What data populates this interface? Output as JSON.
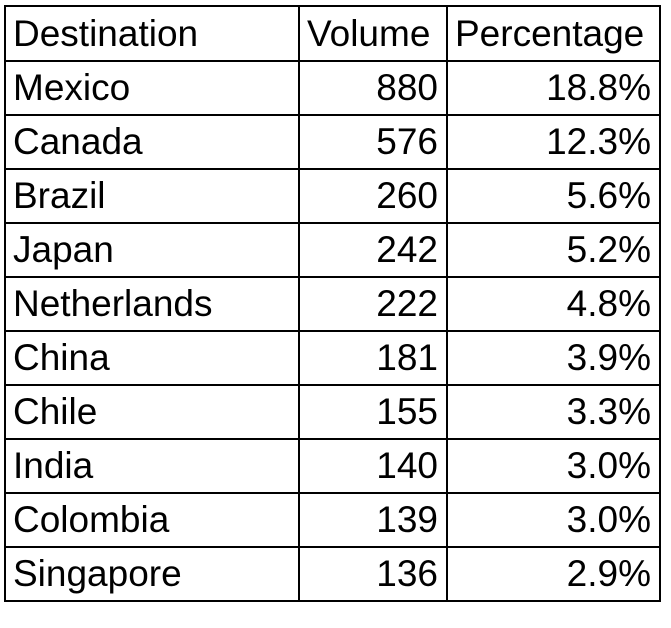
{
  "chart_data": {
    "type": "table",
    "columns": [
      "Destination",
      "Volume",
      "Percentage"
    ],
    "rows": [
      {
        "destination": "Mexico",
        "volume": "880",
        "percentage": "18.8%"
      },
      {
        "destination": "Canada",
        "volume": "576",
        "percentage": "12.3%"
      },
      {
        "destination": "Brazil",
        "volume": "260",
        "percentage": "5.6%"
      },
      {
        "destination": "Japan",
        "volume": "242",
        "percentage": "5.2%"
      },
      {
        "destination": "Netherlands",
        "volume": "222",
        "percentage": "4.8%"
      },
      {
        "destination": "China",
        "volume": "181",
        "percentage": "3.9%"
      },
      {
        "destination": "Chile",
        "volume": "155",
        "percentage": "3.3%"
      },
      {
        "destination": "India",
        "volume": "140",
        "percentage": "3.0%"
      },
      {
        "destination": "Colombia",
        "volume": "139",
        "percentage": "3.0%"
      },
      {
        "destination": "Singapore",
        "volume": "136",
        "percentage": "2.9%"
      }
    ]
  }
}
